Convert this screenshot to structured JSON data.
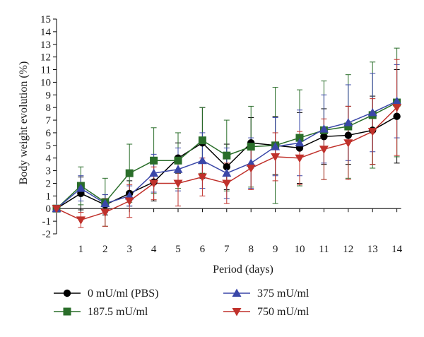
{
  "chart_data": {
    "type": "line",
    "title": "",
    "xlabel": "Period (days)",
    "ylabel": "Body weight evolution (%)",
    "x": [
      0,
      1,
      2,
      3,
      4,
      5,
      6,
      7,
      8,
      9,
      10,
      11,
      12,
      13,
      14
    ],
    "x_tick_labels": [
      "1",
      "2",
      "3",
      "4",
      "5",
      "6",
      "7",
      "8",
      "9",
      "10",
      "11",
      "12",
      "13",
      "14"
    ],
    "ylim": [
      -2,
      15
    ],
    "y_ticks": [
      -2,
      -1,
      0,
      1,
      2,
      3,
      4,
      5,
      6,
      7,
      8,
      9,
      10,
      11,
      12,
      13,
      14,
      15
    ],
    "grid": false,
    "legend_position": "bottom",
    "series": [
      {
        "name": "0 mU/ml (PBS)",
        "color": "#000000",
        "marker": "circle",
        "values": [
          0,
          1.2,
          0.3,
          1.2,
          2.1,
          4.0,
          5.2,
          3.3,
          5.2,
          5.0,
          4.8,
          5.7,
          5.8,
          6.2,
          7.3
        ],
        "errors": [
          0,
          1.3,
          0.8,
          1.0,
          1.5,
          1.2,
          2.8,
          1.8,
          2.0,
          2.3,
          2.8,
          2.2,
          2.3,
          2.7,
          3.7
        ]
      },
      {
        "name": "187.5 mU/ml",
        "color": "#2a6e2a",
        "marker": "square",
        "values": [
          0,
          1.8,
          0.5,
          2.8,
          3.8,
          3.8,
          5.4,
          4.2,
          4.9,
          5.0,
          5.6,
          6.2,
          6.5,
          7.4,
          8.4
        ],
        "errors": [
          0,
          1.5,
          1.9,
          2.3,
          2.6,
          2.2,
          2.6,
          2.8,
          3.2,
          4.6,
          3.8,
          3.9,
          4.1,
          4.2,
          4.3
        ]
      },
      {
        "name": "375 mU/ml",
        "color": "#3a47a8",
        "marker": "triangle-up",
        "values": [
          0,
          1.6,
          0.4,
          1.0,
          2.8,
          3.1,
          3.8,
          2.8,
          3.6,
          4.9,
          5.2,
          6.3,
          6.8,
          7.6,
          8.5
        ],
        "errors": [
          0,
          1.0,
          0.7,
          0.8,
          1.5,
          1.7,
          2.2,
          2.0,
          2.0,
          2.3,
          2.6,
          2.7,
          3.0,
          3.1,
          2.9
        ]
      },
      {
        "name": "750 mU/ml",
        "color": "#c0312b",
        "marker": "triangle-down",
        "values": [
          0,
          -0.9,
          -0.3,
          0.6,
          2.0,
          2.0,
          2.5,
          2.0,
          3.2,
          4.1,
          4.0,
          4.7,
          5.2,
          6.1,
          8.0
        ],
        "errors": [
          0,
          0.6,
          1.1,
          1.3,
          1.3,
          1.8,
          1.5,
          1.6,
          1.7,
          1.9,
          2.1,
          2.4,
          2.9,
          2.6,
          3.8
        ]
      }
    ]
  }
}
